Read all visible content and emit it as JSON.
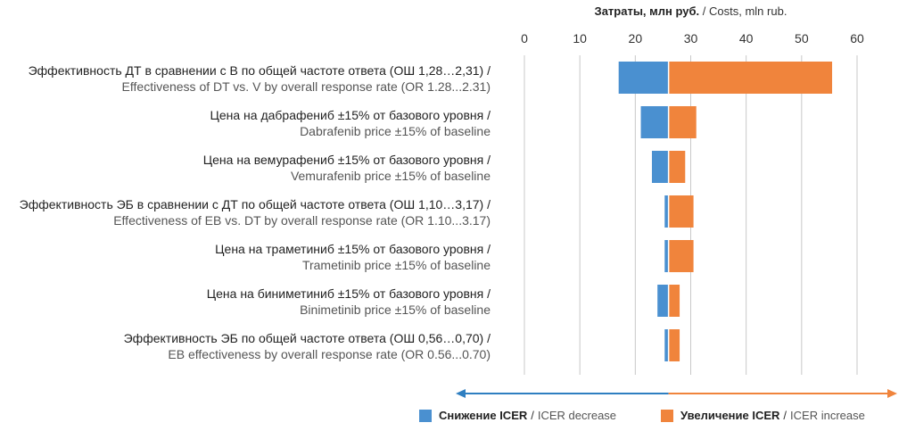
{
  "chart_data": {
    "type": "bar",
    "subtype": "tornado",
    "axis_title_ru": "Затраты, млн руб.",
    "axis_title_sep": "/",
    "axis_title_en": "Costs, mln rub.",
    "xlim": [
      0,
      60
    ],
    "x_ticks": [
      0,
      10,
      20,
      30,
      40,
      50,
      60
    ],
    "baseline": 26,
    "grid": true,
    "categories": [
      {
        "label_ru": "Эффективность ДТ в сравнении с В по общей частоте ответа (ОШ 1,28…2,31) /",
        "label_en": "Effectiveness of DT vs. V by overall response rate (OR 1.28...2.31)",
        "low": 17.0,
        "high": 55.5
      },
      {
        "label_ru": "Цена на дабрафениб ±15% от базового уровня /",
        "label_en": "Dabrafenib price ±15% of baseline",
        "low": 21.0,
        "high": 31.0
      },
      {
        "label_ru": "Цена на вемурафениб ±15% от базового уровня /",
        "label_en": "Vemurafenib price ±15% of baseline",
        "low": 23.0,
        "high": 29.0
      },
      {
        "label_ru": "Эффективность ЭБ в сравнении с ДТ по общей частоте ответа (ОШ 1,10…3,17) /",
        "label_en": "Effectiveness of EB vs. DT by overall response rate (OR 1.10...3.17)",
        "low": 25.3,
        "high": 30.5
      },
      {
        "label_ru": "Цена на траметиниб ±15% от базового уровня /",
        "label_en": "Trametinib price ±15% of baseline",
        "low": 25.3,
        "high": 30.5
      },
      {
        "label_ru": "Цена на биниметиниб ±15% от базового уровня /",
        "label_en": "Binimetinib price ±15% of baseline",
        "low": 24.0,
        "high": 28.0
      },
      {
        "label_ru": "Эффективность ЭБ по общей частоте ответа (ОШ 0,56…0,70) /",
        "label_en": "EB effectiveness by overall response rate (OR 0.56...0.70)",
        "low": 25.3,
        "high": 28.0
      }
    ],
    "series": [
      {
        "name_ru": "Снижение ICER",
        "name_en": "ICER decrease",
        "color": "#4a90d0"
      },
      {
        "name_ru": "Увеличение ICER",
        "name_en": "ICER increase",
        "color": "#f0843c"
      }
    ],
    "legend": {
      "placement": "bottom",
      "sep": "/"
    },
    "arrow_colors": {
      "left": "#2f7fc1",
      "right": "#f0843c"
    },
    "label_colors": {
      "ru": "#222222",
      "en": "#555555"
    },
    "grid_color": "#c8c8c8"
  }
}
